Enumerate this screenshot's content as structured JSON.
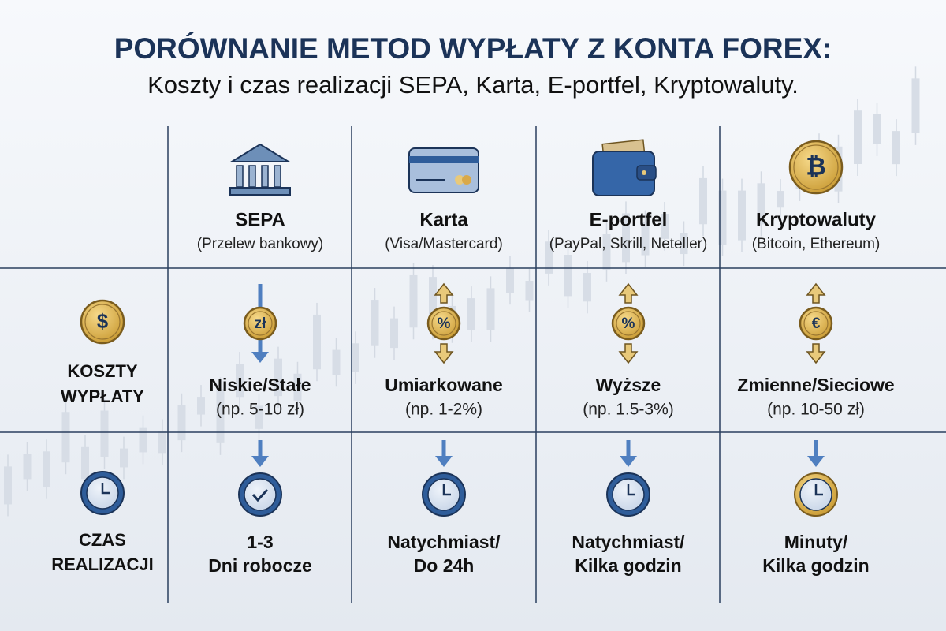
{
  "header": {
    "title": "PORÓWNANIE METOD WYPŁATY Z KONTA FOREX:",
    "subtitle": "Koszty i czas realizacji SEPA, Karta, E-portfel, Kryptowaluty."
  },
  "columns": [
    {
      "name": "SEPA",
      "sub": "(Przelew bankowy)"
    },
    {
      "name": "Karta",
      "sub": "(Visa/Mastercard)"
    },
    {
      "name": "E-portfel",
      "sub": "(PayPal, Skrill, Neteller)"
    },
    {
      "name": "Kryptowaluty",
      "sub": "(Bitcoin, Ethereum)",
      "icon": "₿"
    }
  ],
  "rows": [
    {
      "label": [
        "KOSZTY",
        "WYPŁATY"
      ],
      "icon": "$",
      "cells": [
        {
          "icon": "zł",
          "lines": [
            "Niskie/Stałe",
            "(np. 5-10 zł)"
          ]
        },
        {
          "icon": "%",
          "lines": [
            "Umiarkowane",
            "(np. 1-2%)"
          ]
        },
        {
          "icon": "%",
          "lines": [
            "Wyższe",
            "(np. 1.5-3%)"
          ]
        },
        {
          "icon": "€",
          "lines": [
            "Zmienne/Sieciowe",
            "(np. 10-50 zł)"
          ]
        }
      ]
    },
    {
      "label": [
        "CZAS",
        "REALIZACJI"
      ],
      "cells": [
        {
          "lines": [
            "1-3",
            "Dni robocze"
          ]
        },
        {
          "lines": [
            "Natychmiast/",
            "Do 24h"
          ]
        },
        {
          "lines": [
            "Natychmiast/",
            "Kilka godzin"
          ]
        },
        {
          "lines": [
            "Minuty/",
            "Kilka godzin"
          ]
        }
      ]
    }
  ]
}
